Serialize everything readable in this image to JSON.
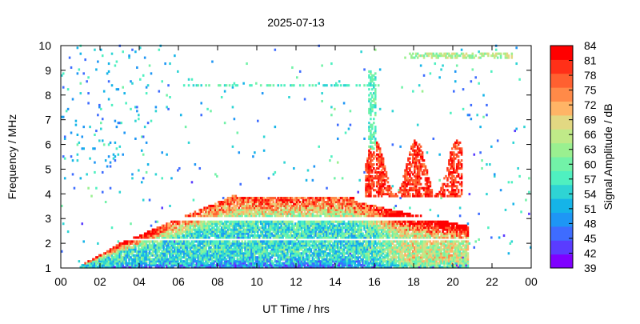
{
  "chart_data": {
    "type": "heatmap",
    "title": "2025-07-13",
    "xlabel": "UT Time / hrs",
    "ylabel": "Frequency / MHz",
    "colorbar_label": "Signal Amplitude / dB",
    "xlim": [
      0,
      24
    ],
    "ylim": [
      1,
      10
    ],
    "x_tick_labels": [
      "00",
      "02",
      "04",
      "06",
      "08",
      "10",
      "12",
      "14",
      "16",
      "18",
      "20",
      "22",
      "00"
    ],
    "y_ticks": [
      1,
      2,
      3,
      4,
      5,
      6,
      7,
      8,
      9,
      10
    ],
    "colorbar_range": [
      39,
      84
    ],
    "colorbar_ticks": [
      39,
      42,
      45,
      48,
      51,
      54,
      57,
      60,
      63,
      66,
      69,
      72,
      75,
      78,
      81,
      84
    ],
    "colorscale": [
      "#7f00ff",
      "#5a3cff",
      "#3e6cff",
      "#1e96f5",
      "#15b4e8",
      "#2ed4d4",
      "#4ff0c0",
      "#72f2a8",
      "#9af090",
      "#c0ea88",
      "#e2d882",
      "#ffb466",
      "#ff8a48",
      "#ff6030",
      "#ff3018",
      "#ff0000"
    ],
    "grid": false,
    "legend": "colorbar-right",
    "features": [
      {
        "t_start": 1.0,
        "t_end": 20.8,
        "f_max_start": 1.1,
        "f_max_peak": 4.0,
        "amplitude_dB": [
          45,
          81
        ],
        "kind": "daytime-band"
      },
      {
        "t_start": 15.5,
        "t_end": 20.5,
        "f_max": 6.2,
        "amplitude_dB": [
          75,
          84
        ],
        "kind": "late-day-peak"
      },
      {
        "t_start": 6.0,
        "t_end": 16.0,
        "f": 8.4,
        "amplitude_dB": [
          54,
          57
        ],
        "kind": "sporadic-band"
      },
      {
        "t_start": 15.7,
        "t_end": 16.1,
        "f_min": 5.8,
        "f_max": 9.0,
        "amplitude_dB": [
          55,
          63
        ],
        "kind": "vertical-spike"
      },
      {
        "t_start": 0.0,
        "t_end": 5.5,
        "f_min": 4.5,
        "f_max": 10.0,
        "amplitude_dB": [
          45,
          60
        ],
        "kind": "night-scatter"
      },
      {
        "t_start": 17.5,
        "t_end": 23.0,
        "f": 9.6,
        "amplitude_dB": [
          60,
          69
        ],
        "kind": "evening-band"
      }
    ]
  }
}
